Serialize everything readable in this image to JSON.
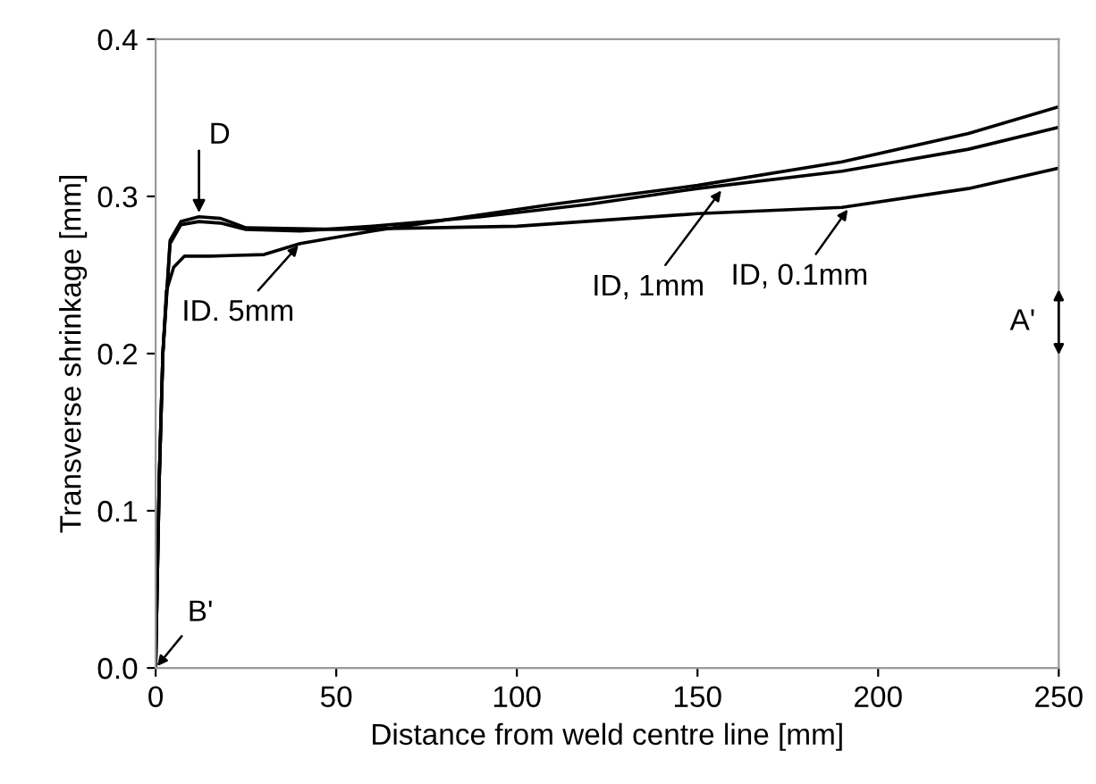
{
  "chart_data": {
    "type": "line",
    "xlabel": "Distance from weld centre line [mm]",
    "ylabel": "Transverse shrinkage [mm]",
    "xlim": [
      0,
      250
    ],
    "ylim": [
      0,
      0.4
    ],
    "xticks": [
      0,
      50,
      100,
      150,
      200,
      250
    ],
    "yticks": [
      {
        "value": 0,
        "label": "0.0"
      },
      0.1,
      0.2,
      0.3,
      0.4
    ],
    "marker": "none",
    "line_style": "solid",
    "grid": false,
    "legend": false,
    "series": [
      {
        "color": "#000000",
        "x": [
          0,
          1,
          2,
          3,
          5,
          8,
          15,
          30,
          40,
          60,
          80,
          110,
          150,
          190,
          225,
          250
        ],
        "values": [
          0,
          0.12,
          0.2,
          0.24,
          0.255,
          0.262,
          0.262,
          0.263,
          0.27,
          0.278,
          0.285,
          0.295,
          0.307,
          0.322,
          0.34,
          0.357
        ]
      },
      {
        "color": "#000000",
        "x": [
          0,
          1,
          2,
          4,
          7,
          12,
          18,
          25,
          40,
          60,
          90,
          120,
          150,
          190,
          225,
          250
        ],
        "values": [
          0,
          0.12,
          0.2,
          0.27,
          0.282,
          0.284,
          0.283,
          0.279,
          0.278,
          0.281,
          0.287,
          0.295,
          0.305,
          0.316,
          0.33,
          0.344
        ]
      },
      {
        "color": "#000000",
        "x": [
          0,
          1,
          2,
          4,
          7,
          12,
          18,
          25,
          50,
          100,
          150,
          190,
          225,
          250
        ],
        "values": [
          0,
          0.12,
          0.2,
          0.272,
          0.284,
          0.287,
          0.286,
          0.28,
          0.279,
          0.281,
          0.289,
          0.293,
          0.305,
          0.318
        ]
      }
    ],
    "annotations": [
      {
        "text": "D",
        "x": 12,
        "y": 0.288
      },
      {
        "text": "ID. 5mm",
        "x": 40,
        "y": 0.27
      },
      {
        "text": "ID, 1mm",
        "x": 157,
        "y": 0.305
      },
      {
        "text": "ID, 0.1mm",
        "x": 192,
        "y": 0.293
      },
      "A'",
      {
        "text": "B'",
        "x": 0,
        "y": 0
      }
    ]
  }
}
